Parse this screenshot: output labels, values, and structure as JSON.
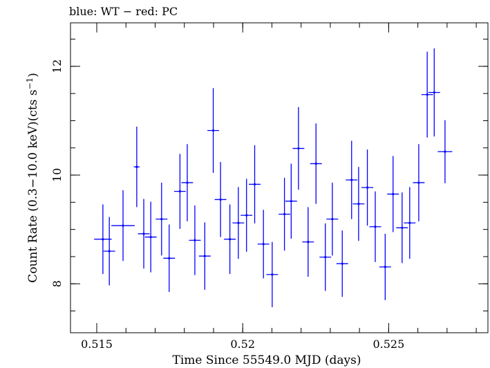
{
  "chart_data": {
    "type": "scatter",
    "title": "blue: WT − red: PC",
    "xlabel": "Time Since 55549.0 MJD (days)",
    "ylabel": "Count Rate (0.3−10.0 keV)(cts s",
    "ylabel_sup": "−1",
    "ylabel_close": ")",
    "xlim": [
      0.5141,
      0.5284
    ],
    "ylim": [
      7.1,
      12.8
    ],
    "x_ticks": [
      {
        "value": 0.515,
        "label": "0.515"
      },
      {
        "value": 0.52,
        "label": "0.52"
      },
      {
        "value": 0.525,
        "label": "0.525"
      }
    ],
    "y_ticks": [
      {
        "value": 8,
        "label": "8"
      },
      {
        "value": 10,
        "label": "10"
      },
      {
        "value": 12,
        "label": "12"
      }
    ],
    "x_minor_step": 0.001,
    "y_minor_step": 0.5,
    "grid": false,
    "series_color": "#0000ff",
    "points": [
      {
        "x": 0.51521,
        "y": 8.82,
        "xerr": 0.0003,
        "yerr": 0.64
      },
      {
        "x": 0.51543,
        "y": 8.6,
        "xerr": 0.0002,
        "yerr": 0.63
      },
      {
        "x": 0.5159,
        "y": 9.07,
        "xerr": 0.0004,
        "yerr": 0.65
      },
      {
        "x": 0.51637,
        "y": 10.15,
        "xerr": 0.0001,
        "yerr": 0.74
      },
      {
        "x": 0.51661,
        "y": 8.92,
        "xerr": 0.0002,
        "yerr": 0.64
      },
      {
        "x": 0.51685,
        "y": 8.86,
        "xerr": 0.0002,
        "yerr": 0.65
      },
      {
        "x": 0.51722,
        "y": 9.19,
        "xerr": 0.0002,
        "yerr": 0.67
      },
      {
        "x": 0.51748,
        "y": 8.47,
        "xerr": 0.0002,
        "yerr": 0.62
      },
      {
        "x": 0.51785,
        "y": 9.7,
        "xerr": 0.0002,
        "yerr": 0.69
      },
      {
        "x": 0.5181,
        "y": 9.86,
        "xerr": 0.0002,
        "yerr": 0.71
      },
      {
        "x": 0.51836,
        "y": 8.8,
        "xerr": 0.0002,
        "yerr": 0.64
      },
      {
        "x": 0.5187,
        "y": 8.51,
        "xerr": 0.0002,
        "yerr": 0.62
      },
      {
        "x": 0.51899,
        "y": 10.82,
        "xerr": 0.0002,
        "yerr": 0.78
      },
      {
        "x": 0.51924,
        "y": 9.55,
        "xerr": 0.0002,
        "yerr": 0.69
      },
      {
        "x": 0.51956,
        "y": 8.82,
        "xerr": 0.0002,
        "yerr": 0.64
      },
      {
        "x": 0.51985,
        "y": 9.12,
        "xerr": 0.0002,
        "yerr": 0.66
      },
      {
        "x": 0.52013,
        "y": 9.26,
        "xerr": 0.0002,
        "yerr": 0.67
      },
      {
        "x": 0.52041,
        "y": 9.83,
        "xerr": 0.0002,
        "yerr": 0.72
      },
      {
        "x": 0.52071,
        "y": 8.73,
        "xerr": 0.0002,
        "yerr": 0.63
      },
      {
        "x": 0.52101,
        "y": 8.17,
        "xerr": 0.0002,
        "yerr": 0.6
      },
      {
        "x": 0.52143,
        "y": 9.28,
        "xerr": 0.0002,
        "yerr": 0.67
      },
      {
        "x": 0.52166,
        "y": 9.52,
        "xerr": 0.0002,
        "yerr": 0.69
      },
      {
        "x": 0.52191,
        "y": 10.49,
        "xerr": 0.0002,
        "yerr": 0.76
      },
      {
        "x": 0.52224,
        "y": 8.77,
        "xerr": 0.0002,
        "yerr": 0.64
      },
      {
        "x": 0.52251,
        "y": 10.21,
        "xerr": 0.0002,
        "yerr": 0.74
      },
      {
        "x": 0.52283,
        "y": 8.49,
        "xerr": 0.0002,
        "yerr": 0.62
      },
      {
        "x": 0.52307,
        "y": 9.19,
        "xerr": 0.0002,
        "yerr": 0.67
      },
      {
        "x": 0.52341,
        "y": 8.37,
        "xerr": 0.0002,
        "yerr": 0.61
      },
      {
        "x": 0.52373,
        "y": 9.91,
        "xerr": 0.0002,
        "yerr": 0.72
      },
      {
        "x": 0.52397,
        "y": 9.47,
        "xerr": 0.0002,
        "yerr": 0.68
      },
      {
        "x": 0.52427,
        "y": 9.77,
        "xerr": 0.0002,
        "yerr": 0.7
      },
      {
        "x": 0.52454,
        "y": 9.05,
        "xerr": 0.0002,
        "yerr": 0.65
      },
      {
        "x": 0.52488,
        "y": 8.31,
        "xerr": 0.0002,
        "yerr": 0.61
      },
      {
        "x": 0.52515,
        "y": 9.65,
        "xerr": 0.0002,
        "yerr": 0.7
      },
      {
        "x": 0.52546,
        "y": 9.03,
        "xerr": 0.0002,
        "yerr": 0.65
      },
      {
        "x": 0.52572,
        "y": 9.12,
        "xerr": 0.0002,
        "yerr": 0.66
      },
      {
        "x": 0.52603,
        "y": 9.86,
        "xerr": 0.0002,
        "yerr": 0.71
      },
      {
        "x": 0.52632,
        "y": 11.48,
        "xerr": 0.0002,
        "yerr": 0.79
      },
      {
        "x": 0.52656,
        "y": 11.52,
        "xerr": 0.0002,
        "yerr": 0.81
      },
      {
        "x": 0.52693,
        "y": 10.43,
        "xerr": 0.00025,
        "yerr": 0.58
      }
    ]
  }
}
